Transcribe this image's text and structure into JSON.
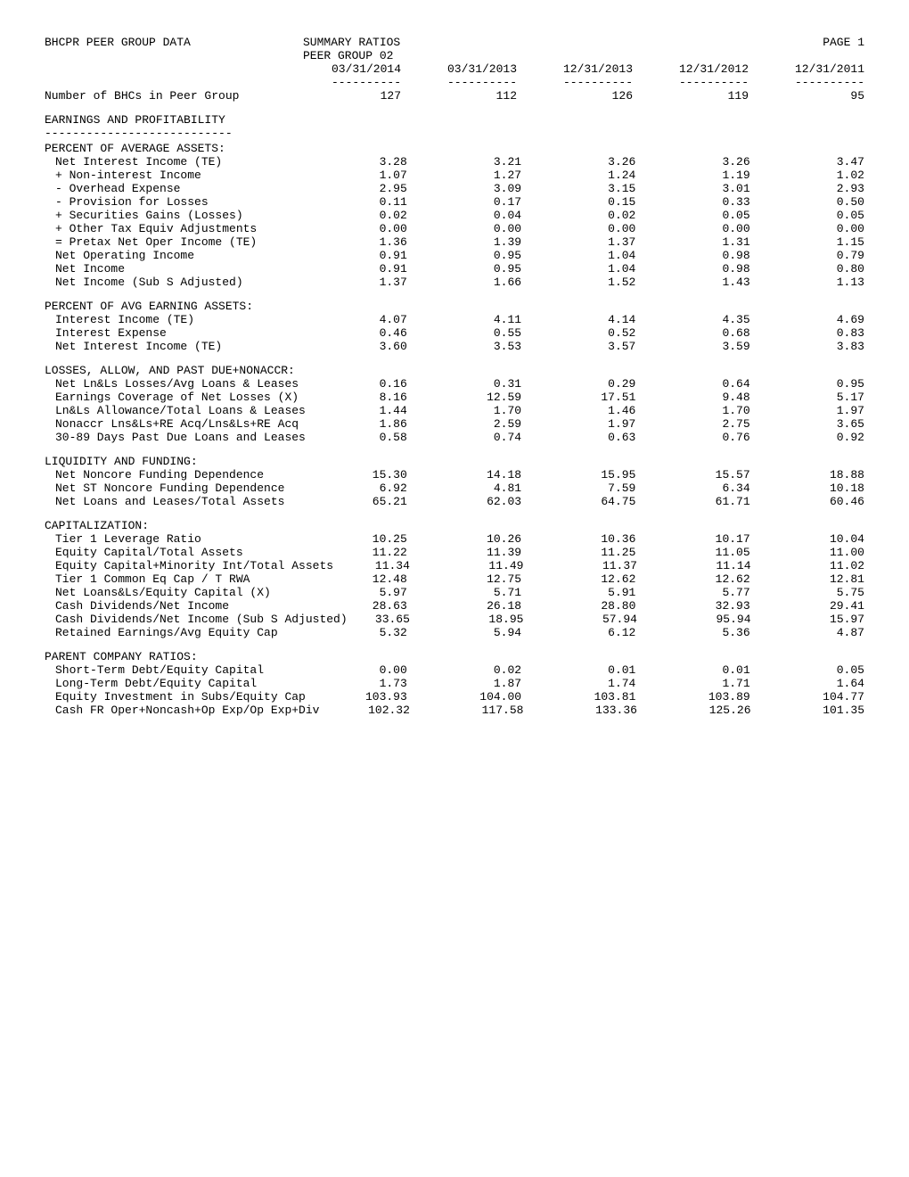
{
  "header": {
    "title": "BHCPR PEER GROUP DATA",
    "subtitle_l1": "SUMMARY RATIOS",
    "subtitle_l2": "PEER GROUP 02",
    "page": "PAGE 1"
  },
  "dates": [
    "03/31/2014",
    "03/31/2013",
    "12/31/2013",
    "12/31/2012",
    "12/31/2011"
  ],
  "dash": "----------",
  "count_label": "Number of BHCs in Peer Group",
  "counts": [
    "127",
    "112",
    "126",
    "119",
    "95"
  ],
  "sections": [
    {
      "heading": "EARNINGS AND PROFITABILITY",
      "strike": "---------------------------",
      "groups": [
        {
          "sub": "PERCENT OF AVERAGE ASSETS:",
          "rows": [
            {
              "l": "Net Interest Income (TE)",
              "v": [
                "3.28",
                "3.21",
                "3.26",
                "3.26",
                "3.47"
              ]
            },
            {
              "l": "+ Non-interest Income",
              "v": [
                "1.07",
                "1.27",
                "1.24",
                "1.19",
                "1.02"
              ]
            },
            {
              "l": "- Overhead Expense",
              "v": [
                "2.95",
                "3.09",
                "3.15",
                "3.01",
                "2.93"
              ]
            },
            {
              "l": "- Provision for Losses",
              "v": [
                "0.11",
                "0.17",
                "0.15",
                "0.33",
                "0.50"
              ]
            },
            {
              "l": "+ Securities Gains (Losses)",
              "v": [
                "0.02",
                "0.04",
                "0.02",
                "0.05",
                "0.05"
              ]
            },
            {
              "l": "+ Other Tax Equiv Adjustments",
              "v": [
                "0.00",
                "0.00",
                "0.00",
                "0.00",
                "0.00"
              ]
            },
            {
              "l": "= Pretax Net Oper Income (TE)",
              "v": [
                "1.36",
                "1.39",
                "1.37",
                "1.31",
                "1.15"
              ]
            },
            {
              "l": "Net Operating Income",
              "v": [
                "0.91",
                "0.95",
                "1.04",
                "0.98",
                "0.79"
              ]
            },
            {
              "l": "Net Income",
              "v": [
                "0.91",
                "0.95",
                "1.04",
                "0.98",
                "0.80"
              ]
            },
            {
              "l": "Net Income (Sub S Adjusted)",
              "v": [
                "1.37",
                "1.66",
                "1.52",
                "1.43",
                "1.13"
              ]
            }
          ]
        },
        {
          "sub": "PERCENT OF AVG EARNING ASSETS:",
          "rows": [
            {
              "l": "Interest Income (TE)",
              "v": [
                "4.07",
                "4.11",
                "4.14",
                "4.35",
                "4.69"
              ]
            },
            {
              "l": "Interest Expense",
              "v": [
                "0.46",
                "0.55",
                "0.52",
                "0.68",
                "0.83"
              ]
            },
            {
              "l": "Net Interest Income (TE)",
              "v": [
                "3.60",
                "3.53",
                "3.57",
                "3.59",
                "3.83"
              ]
            }
          ]
        },
        {
          "sub": "LOSSES, ALLOW, AND PAST DUE+NONACCR:",
          "rows": [
            {
              "l": "Net Ln&Ls Losses/Avg Loans & Leases",
              "v": [
                "0.16",
                "0.31",
                "0.29",
                "0.64",
                "0.95"
              ]
            },
            {
              "l": "Earnings Coverage of Net Losses (X)",
              "v": [
                "8.16",
                "12.59",
                "17.51",
                "9.48",
                "5.17"
              ]
            },
            {
              "l": "Ln&Ls Allowance/Total Loans & Leases",
              "v": [
                "1.44",
                "1.70",
                "1.46",
                "1.70",
                "1.97"
              ]
            },
            {
              "l": "Nonaccr Lns&Ls+RE Acq/Lns&Ls+RE Acq",
              "v": [
                "1.86",
                "2.59",
                "1.97",
                "2.75",
                "3.65"
              ]
            },
            {
              "l": "30-89 Days Past Due Loans and Leases",
              "v": [
                "0.58",
                "0.74",
                "0.63",
                "0.76",
                "0.92"
              ]
            }
          ]
        },
        {
          "sub": "LIQUIDITY AND FUNDING:",
          "rows": [
            {
              "l": "Net Noncore Funding Dependence",
              "v": [
                "15.30",
                "14.18",
                "15.95",
                "15.57",
                "18.88"
              ]
            },
            {
              "l": "Net ST Noncore Funding Dependence",
              "v": [
                "6.92",
                "4.81",
                "7.59",
                "6.34",
                "10.18"
              ]
            },
            {
              "l": "Net Loans and Leases/Total Assets",
              "v": [
                "65.21",
                "62.03",
                "64.75",
                "61.71",
                "60.46"
              ]
            }
          ]
        },
        {
          "sub": "CAPITALIZATION:",
          "rows": [
            {
              "l": "Tier 1 Leverage Ratio",
              "v": [
                "10.25",
                "10.26",
                "10.36",
                "10.17",
                "10.04"
              ]
            },
            {
              "l": "Equity Capital/Total Assets",
              "v": [
                "11.22",
                "11.39",
                "11.25",
                "11.05",
                "11.00"
              ]
            },
            {
              "l": "Equity Capital+Minority Int/Total Assets",
              "v": [
                "11.34",
                "11.49",
                "11.37",
                "11.14",
                "11.02"
              ]
            },
            {
              "l": "Tier 1 Common Eq Cap / T RWA",
              "v": [
                "12.48",
                "12.75",
                "12.62",
                "12.62",
                "12.81"
              ]
            },
            {
              "l": "Net Loans&Ls/Equity Capital (X)",
              "v": [
                "5.97",
                "5.71",
                "5.91",
                "5.77",
                "5.75"
              ]
            },
            {
              "l": "Cash Dividends/Net Income",
              "v": [
                "28.63",
                "26.18",
                "28.80",
                "32.93",
                "29.41"
              ]
            },
            {
              "l": "Cash Dividends/Net Income (Sub S Adjusted)",
              "v": [
                "33.65",
                "18.95",
                "57.94",
                "95.94",
                "15.97"
              ]
            },
            {
              "l": "Retained Earnings/Avg Equity Cap",
              "v": [
                "5.32",
                "5.94",
                "6.12",
                "5.36",
                "4.87"
              ]
            }
          ]
        },
        {
          "sub": "PARENT COMPANY RATIOS:",
          "rows": [
            {
              "l": "Short-Term Debt/Equity Capital",
              "v": [
                "0.00",
                "0.02",
                "0.01",
                "0.01",
                "0.05"
              ]
            },
            {
              "l": "Long-Term Debt/Equity Capital",
              "v": [
                "1.73",
                "1.87",
                "1.74",
                "1.71",
                "1.64"
              ]
            },
            {
              "l": "Equity Investment in Subs/Equity Cap",
              "v": [
                "103.93",
                "104.00",
                "103.81",
                "103.89",
                "104.77"
              ]
            },
            {
              "l": "Cash FR Oper+Noncash+Op Exp/Op Exp+Div",
              "v": [
                "102.32",
                "117.58",
                "133.36",
                "125.26",
                "101.35"
              ]
            }
          ]
        }
      ]
    }
  ]
}
